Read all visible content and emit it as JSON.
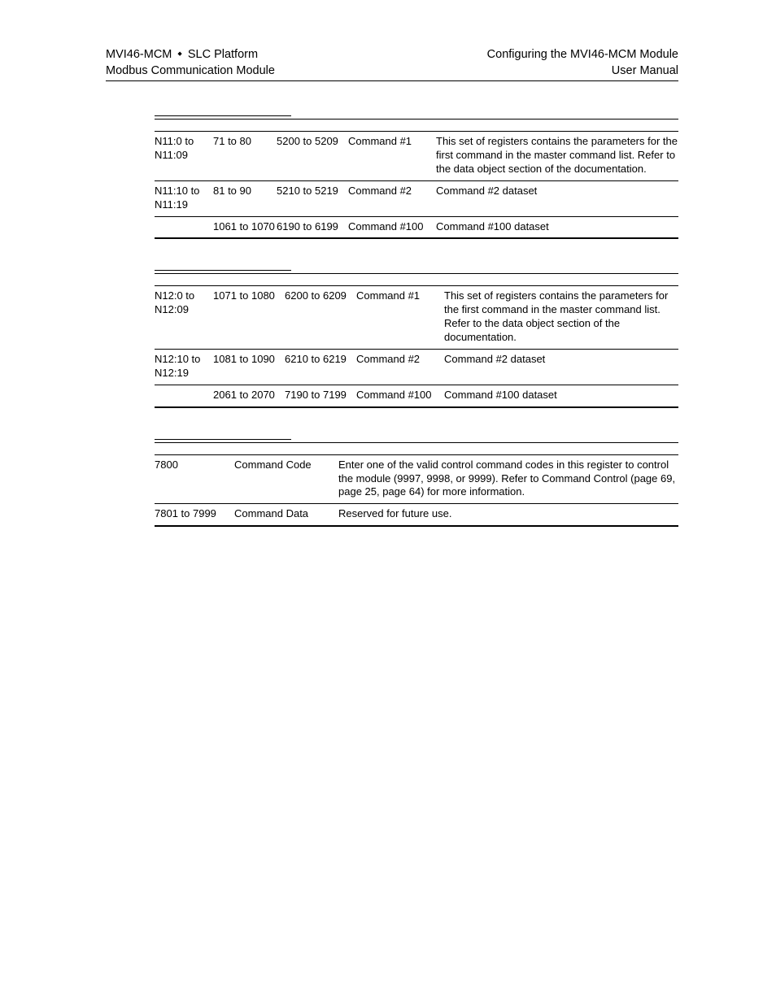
{
  "header": {
    "left_line1_a": "MVI46-MCM",
    "left_line1_b": "SLC Platform",
    "left_line2": "Modbus Communication Module",
    "right_line1": "Configuring the MVI46-MCM Module",
    "right_line2": "User Manual"
  },
  "table1": {
    "rows": [
      {
        "c1": "N11:0 to N11:09",
        "c2": "71 to 80",
        "c3": "5200 to 5209",
        "c4": "Command #1",
        "c5": "This set of registers contains the parameters for the first command in the master command list. Refer to the data object section of the documentation."
      },
      {
        "c1": "N11:10 to N11:19",
        "c2": "81 to 90",
        "c3": "5210 to 5219",
        "c4": "Command #2",
        "c5": "Command #2 dataset"
      },
      {
        "c1": "",
        "c2": "1061 to 1070",
        "c3": "6190 to 6199",
        "c4": "Command #100",
        "c5": "Command #100 dataset"
      }
    ]
  },
  "table2": {
    "rows": [
      {
        "c1": "N12:0 to N12:09",
        "c2": "1071 to 1080",
        "c3": "6200 to 6209",
        "c4": "Command #1",
        "c5": "This set of registers contains the parameters for the first command in the master command list. Refer to the data object section of the documentation."
      },
      {
        "c1": "N12:10 to N12:19",
        "c2": "1081 to 1090",
        "c3": "6210 to 6219",
        "c4": "Command #2",
        "c5": "Command #2 dataset"
      },
      {
        "c1": "",
        "c2": "2061 to 2070",
        "c3": "7190 to 7199",
        "c4": "Command #100",
        "c5": "Command #100 dataset"
      }
    ]
  },
  "table3": {
    "rows": [
      {
        "c1": "7800",
        "c2": "Command Code",
        "c3": "Enter one of the valid control command codes in this register to control the module (9997, 9998, or 9999). Refer to Command Control (page 69, page 25, page 64) for more information."
      },
      {
        "c1": "7801 to 7999",
        "c2": "Command Data",
        "c3": "Reserved for future use."
      }
    ]
  }
}
